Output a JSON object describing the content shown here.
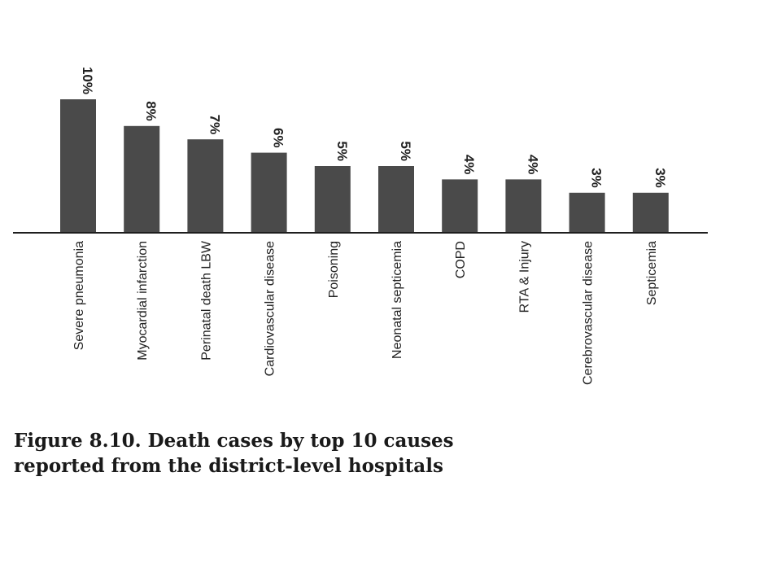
{
  "chart_data": {
    "type": "bar",
    "categories": [
      "Severe pneumonia",
      "Myocardial infarction",
      "Perinatal death LBW",
      "Cardiovascular disease",
      "Poisoning",
      "Neonatal septicemia",
      "COPD",
      "RTA & Injury",
      "Cerebrovascular disease",
      "Septicemia"
    ],
    "values": [
      10,
      8,
      7,
      6,
      5,
      5,
      4,
      4,
      3,
      3
    ],
    "value_labels": [
      "10%",
      "8%",
      "7%",
      "6%",
      "5%",
      "5%",
      "4%",
      "4%",
      "3%",
      "3%"
    ],
    "unit": "%",
    "title_lines": [
      "Figure 8.10. Death cases by top 10 causes",
      "reported from the district-level hospitals"
    ],
    "xlabel": "",
    "ylabel": "",
    "ylim": [
      0,
      10
    ],
    "grid": false,
    "legend": "none",
    "colors": {
      "bar": "#4a4a4a",
      "text": "#222222"
    }
  }
}
